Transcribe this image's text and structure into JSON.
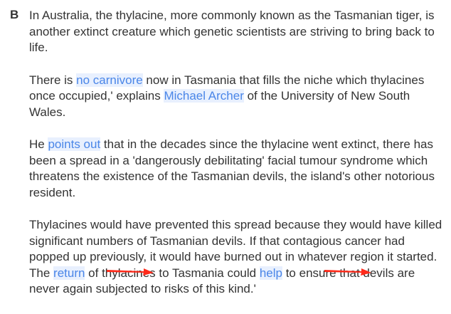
{
  "section": {
    "label": "B"
  },
  "paragraphs": {
    "p1": {
      "text": "In Australia, the thylacine, more commonly known as the Tasmanian tiger, is another extinct creature which genetic scientists are striving to bring back to life."
    },
    "p2": {
      "before": "There is ",
      "hl1": "no carnivore",
      "mid": " now in Tasmania that fills the niche which thylacines once occupied,' explains ",
      "hl2": "Michael Archer",
      "after": " of the University of New South Wales."
    },
    "p3": {
      "before": "He ",
      "hl1": "points out",
      "after": " that in the decades since the thylacine went extinct, there has been a spread in a 'dangerously debilitating' facial tumour syndrome which threatens the existence of the Tasmanian devils, the island's other notorious resident."
    },
    "p4": {
      "before": "Thylacines would have prevented this spread because they would have killed significant numbers of Tasmanian devils. If that contagious cancer had popped up previously, it would have burned out in whatever region it started. The ",
      "hl1": "return",
      "mid": " of thylacines to Tasmania could ",
      "hl2": "help",
      "after": " to ensure that devils are never again subjected to risks of this kind.'"
    }
  },
  "annotations": {
    "color": "#ff2a1a"
  }
}
